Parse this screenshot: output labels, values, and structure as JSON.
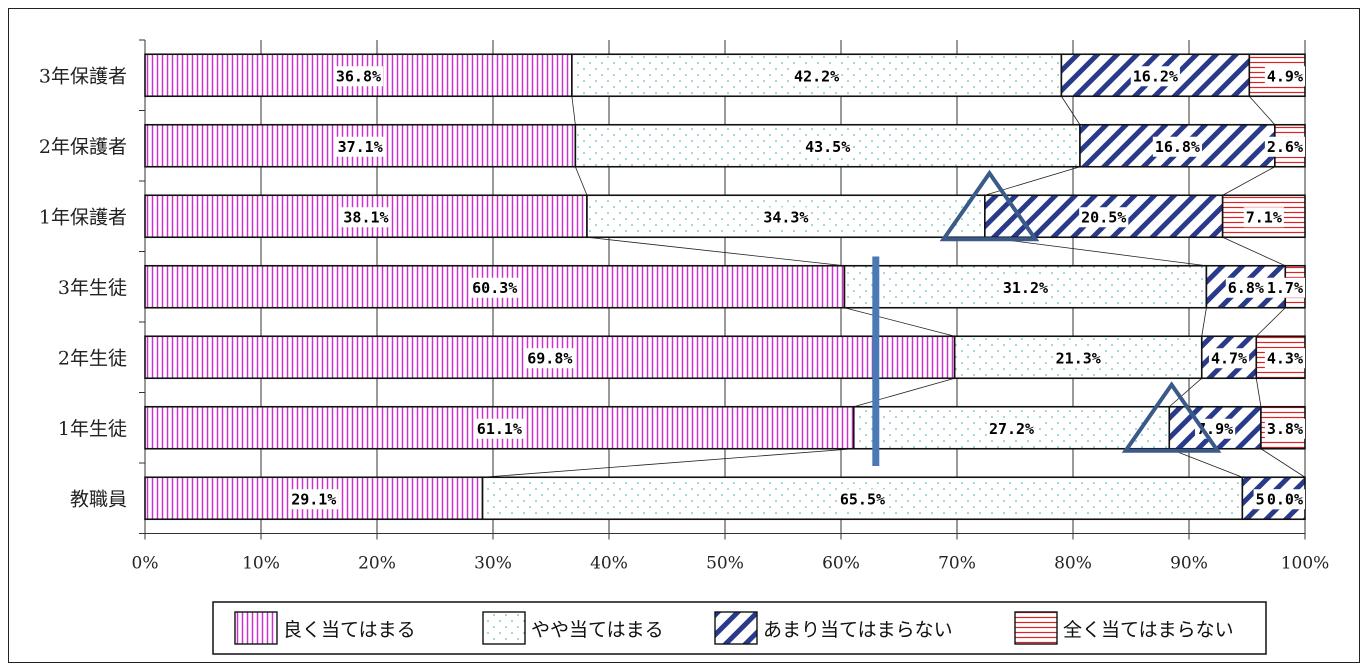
{
  "chart_data": {
    "type": "bar",
    "stacked": true,
    "orientation": "horizontal",
    "percent_stacked": true,
    "categories": [
      "3年保護者",
      "2年保護者",
      "1年保護者",
      "3年生徒",
      "2年生徒",
      "1年生徒",
      "教職員"
    ],
    "series": [
      {
        "name": "良く当てはまる",
        "values": [
          36.8,
          37.1,
          38.1,
          60.3,
          69.8,
          61.1,
          29.1
        ],
        "labels": [
          "36.8%",
          "37.1%",
          "38.1%",
          "60.3%",
          "69.8%",
          "61.1%",
          "29.1%"
        ],
        "color": "#cc33cc",
        "pattern": "vertical-lines"
      },
      {
        "name": "やや当てはまる",
        "values": [
          42.2,
          43.5,
          34.3,
          31.2,
          21.3,
          27.2,
          65.5
        ],
        "labels": [
          "42.2%",
          "43.5%",
          "34.3%",
          "31.2%",
          "21.3%",
          "27.2%",
          "65.5%"
        ],
        "color": "#33aaaa",
        "pattern": "dots"
      },
      {
        "name": "あまり当てはまらない",
        "values": [
          16.2,
          16.8,
          20.5,
          6.8,
          4.7,
          7.9,
          5.4
        ],
        "labels": [
          "16.2%",
          "16.8%",
          "20.5%",
          "6.8%",
          "4.7%",
          "7.9%",
          "5.4%"
        ],
        "color": "#2a3a8a",
        "pattern": "wide-diagonal"
      },
      {
        "name": "全く当てはまらない",
        "values": [
          4.9,
          2.6,
          7.1,
          1.7,
          4.3,
          3.8,
          0.0
        ],
        "labels": [
          "4.9%",
          "2.6%",
          "7.1%",
          "1.7%",
          "4.3%",
          "3.8%",
          "0.0%"
        ],
        "color": "#dd2222",
        "pattern": "horizontal-lines"
      }
    ],
    "x_ticks": [
      "0%",
      "10%",
      "20%",
      "30%",
      "40%",
      "50%",
      "60%",
      "70%",
      "80%",
      "90%",
      "100%"
    ],
    "xlim": [
      0,
      100
    ],
    "grid": "vertical",
    "legend_position": "bottom",
    "annotations": [
      {
        "type": "vertical-line",
        "x": 63,
        "color": "#4a7ab5"
      },
      {
        "type": "triangle",
        "x": 72.8,
        "row": "1年保護者",
        "color": "#3a5a8a"
      },
      {
        "type": "triangle",
        "x": 88.5,
        "row": "1年生徒",
        "color": "#3a5a8a"
      }
    ]
  }
}
